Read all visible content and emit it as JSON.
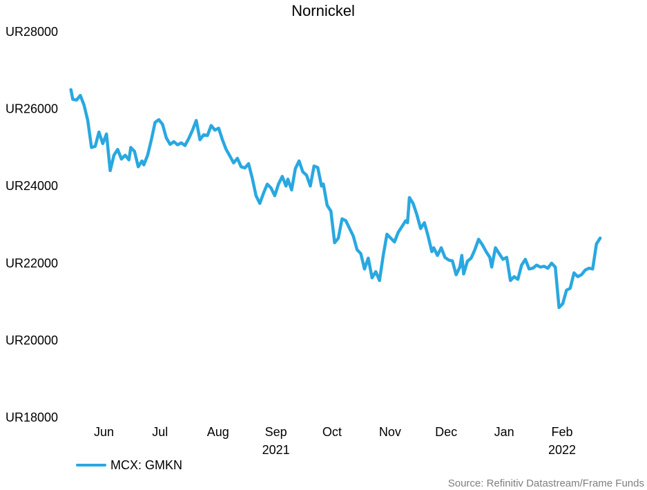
{
  "chart_data": {
    "type": "line",
    "title": "Nornickel",
    "ylim": [
      18000,
      28000
    ],
    "y_ticks": [
      {
        "value": 28000,
        "label": "UR28000"
      },
      {
        "value": 26000,
        "label": "UR26000"
      },
      {
        "value": 24000,
        "label": "UR24000"
      },
      {
        "value": 22000,
        "label": "UR22000"
      },
      {
        "value": 20000,
        "label": "UR20000"
      },
      {
        "value": 18000,
        "label": "UR18000"
      }
    ],
    "x_ticks": [
      {
        "date": "2021-06-01",
        "label": "Jun"
      },
      {
        "date": "2021-07-01",
        "label": "Jul"
      },
      {
        "date": "2021-08-01",
        "label": "Aug"
      },
      {
        "date": "2021-09-01",
        "label": "Sep"
      },
      {
        "date": "2021-10-01",
        "label": "Oct"
      },
      {
        "date": "2021-11-01",
        "label": "Nov"
      },
      {
        "date": "2021-12-01",
        "label": "Dec"
      },
      {
        "date": "2022-01-01",
        "label": "Jan"
      },
      {
        "date": "2022-02-01",
        "label": "Feb"
      }
    ],
    "year_labels": [
      {
        "date": "2021-09-01",
        "label": "2021"
      },
      {
        "date": "2022-02-01",
        "label": "2022"
      }
    ],
    "xlim": [
      "2021-05-20",
      "2022-03-04"
    ],
    "grid": false,
    "legend_position": "bottom-left",
    "series": [
      {
        "name": "MCX: GMKN",
        "color": "#29a8e0",
        "points": [
          [
            "2021-05-21",
            26500
          ],
          [
            "2021-05-22",
            26250
          ],
          [
            "2021-05-24",
            26230
          ],
          [
            "2021-05-26",
            26350
          ],
          [
            "2021-05-28",
            26100
          ],
          [
            "2021-05-30",
            25700
          ],
          [
            "2021-06-01",
            25000
          ],
          [
            "2021-06-03",
            25030
          ],
          [
            "2021-06-05",
            25400
          ],
          [
            "2021-06-07",
            25100
          ],
          [
            "2021-06-09",
            25350
          ],
          [
            "2021-06-11",
            24400
          ],
          [
            "2021-06-13",
            24800
          ],
          [
            "2021-06-15",
            24950
          ],
          [
            "2021-06-17",
            24700
          ],
          [
            "2021-06-19",
            24800
          ],
          [
            "2021-06-21",
            24680
          ],
          [
            "2021-06-22",
            25000
          ],
          [
            "2021-06-24",
            24900
          ],
          [
            "2021-06-26",
            24500
          ],
          [
            "2021-06-28",
            24650
          ],
          [
            "2021-06-29",
            24550
          ],
          [
            "2021-07-01",
            24800
          ],
          [
            "2021-07-03",
            25200
          ],
          [
            "2021-07-05",
            25650
          ],
          [
            "2021-07-07",
            25720
          ],
          [
            "2021-07-09",
            25600
          ],
          [
            "2021-07-11",
            25250
          ],
          [
            "2021-07-13",
            25080
          ],
          [
            "2021-07-15",
            25150
          ],
          [
            "2021-07-17",
            25070
          ],
          [
            "2021-07-19",
            25120
          ],
          [
            "2021-07-21",
            25050
          ],
          [
            "2021-07-23",
            25230
          ],
          [
            "2021-07-25",
            25450
          ],
          [
            "2021-07-27",
            25700
          ],
          [
            "2021-07-29",
            25200
          ],
          [
            "2021-07-31",
            25330
          ],
          [
            "2021-08-02",
            25310
          ],
          [
            "2021-08-04",
            25570
          ],
          [
            "2021-08-06",
            25450
          ],
          [
            "2021-08-08",
            25500
          ],
          [
            "2021-08-10",
            25200
          ],
          [
            "2021-08-12",
            24950
          ],
          [
            "2021-08-14",
            24780
          ],
          [
            "2021-08-16",
            24600
          ],
          [
            "2021-08-18",
            24720
          ],
          [
            "2021-08-20",
            24500
          ],
          [
            "2021-08-22",
            24470
          ],
          [
            "2021-08-24",
            24580
          ],
          [
            "2021-08-26",
            24200
          ],
          [
            "2021-08-28",
            23750
          ],
          [
            "2021-08-30",
            23550
          ],
          [
            "2021-09-01",
            23820
          ],
          [
            "2021-09-03",
            24050
          ],
          [
            "2021-09-05",
            23950
          ],
          [
            "2021-09-07",
            23750
          ],
          [
            "2021-09-09",
            24050
          ],
          [
            "2021-09-11",
            24250
          ],
          [
            "2021-09-13",
            24000
          ],
          [
            "2021-09-14",
            24180
          ],
          [
            "2021-09-16",
            23900
          ],
          [
            "2021-09-18",
            24450
          ],
          [
            "2021-09-20",
            24650
          ],
          [
            "2021-09-22",
            24370
          ],
          [
            "2021-09-24",
            24280
          ],
          [
            "2021-09-26",
            24000
          ],
          [
            "2021-09-28",
            24520
          ],
          [
            "2021-09-30",
            24480
          ],
          [
            "2021-10-02",
            24000
          ],
          [
            "2021-10-03",
            24050
          ],
          [
            "2021-10-05",
            23500
          ],
          [
            "2021-10-07",
            23350
          ],
          [
            "2021-10-09",
            22530
          ],
          [
            "2021-10-11",
            22650
          ],
          [
            "2021-10-13",
            23150
          ],
          [
            "2021-10-15",
            23100
          ],
          [
            "2021-10-17",
            22900
          ],
          [
            "2021-10-19",
            22700
          ],
          [
            "2021-10-21",
            22350
          ],
          [
            "2021-10-23",
            22250
          ],
          [
            "2021-10-25",
            21850
          ],
          [
            "2021-10-27",
            22130
          ],
          [
            "2021-10-29",
            21620
          ],
          [
            "2021-10-31",
            21780
          ],
          [
            "2021-11-02",
            21550
          ],
          [
            "2021-11-04",
            22200
          ],
          [
            "2021-11-06",
            22750
          ],
          [
            "2021-11-08",
            22650
          ],
          [
            "2021-11-10",
            22550
          ],
          [
            "2021-11-12",
            22800
          ],
          [
            "2021-11-14",
            22950
          ],
          [
            "2021-11-16",
            23100
          ],
          [
            "2021-11-17",
            23050
          ],
          [
            "2021-11-18",
            23700
          ],
          [
            "2021-11-20",
            23550
          ],
          [
            "2021-11-22",
            23250
          ],
          [
            "2021-11-24",
            22900
          ],
          [
            "2021-11-26",
            23050
          ],
          [
            "2021-11-28",
            22700
          ],
          [
            "2021-11-30",
            22300
          ],
          [
            "2021-12-01",
            22400
          ],
          [
            "2021-12-03",
            22200
          ],
          [
            "2021-12-05",
            22400
          ],
          [
            "2021-12-07",
            22150
          ],
          [
            "2021-12-09",
            22080
          ],
          [
            "2021-12-11",
            22060
          ],
          [
            "2021-12-13",
            21700
          ],
          [
            "2021-12-15",
            21900
          ],
          [
            "2021-12-16",
            22200
          ],
          [
            "2021-12-17",
            21720
          ],
          [
            "2021-12-19",
            22050
          ],
          [
            "2021-12-21",
            22130
          ],
          [
            "2021-12-23",
            22350
          ],
          [
            "2021-12-25",
            22620
          ],
          [
            "2021-12-27",
            22480
          ],
          [
            "2021-12-29",
            22300
          ],
          [
            "2021-12-31",
            22150
          ],
          [
            "2022-01-01",
            21900
          ],
          [
            "2022-01-03",
            22400
          ],
          [
            "2022-01-05",
            22250
          ],
          [
            "2022-01-07",
            22100
          ],
          [
            "2022-01-09",
            22150
          ],
          [
            "2022-01-11",
            21550
          ],
          [
            "2022-01-13",
            21650
          ],
          [
            "2022-01-15",
            21580
          ],
          [
            "2022-01-17",
            21950
          ],
          [
            "2022-01-19",
            22100
          ],
          [
            "2022-01-21",
            21850
          ],
          [
            "2022-01-23",
            21870
          ],
          [
            "2022-01-25",
            21950
          ],
          [
            "2022-01-27",
            21900
          ],
          [
            "2022-01-29",
            21920
          ],
          [
            "2022-01-31",
            21870
          ],
          [
            "2022-02-02",
            22000
          ],
          [
            "2022-02-04",
            21900
          ],
          [
            "2022-02-06",
            20850
          ],
          [
            "2022-02-08",
            20950
          ],
          [
            "2022-02-10",
            21300
          ],
          [
            "2022-02-12",
            21350
          ],
          [
            "2022-02-14",
            21750
          ],
          [
            "2022-02-16",
            21650
          ],
          [
            "2022-02-18",
            21700
          ],
          [
            "2022-02-20",
            21820
          ],
          [
            "2022-02-22",
            21870
          ],
          [
            "2022-02-24",
            21850
          ],
          [
            "2022-02-26",
            22500
          ],
          [
            "2022-02-28",
            22650
          ]
        ]
      }
    ]
  },
  "legend": {
    "label": "MCX: GMKN"
  },
  "source": "Source: Refinitiv Datastream/Frame Funds"
}
